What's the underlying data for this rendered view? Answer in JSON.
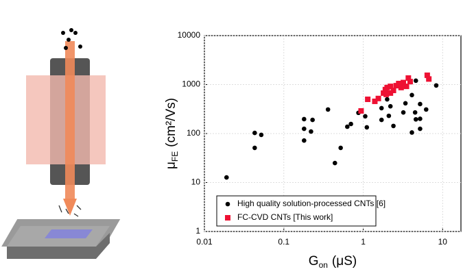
{
  "chart_data": {
    "type": "scatter",
    "x_label": {
      "main": "G",
      "sub": "on",
      "rest": "(μS)"
    },
    "y_label": {
      "main": "μ",
      "sub": "FE",
      "rest": "(cm²/Vs)"
    },
    "log_x": true,
    "log_y": true,
    "grid": true,
    "legend": "lower left",
    "xlim": [
      0.01,
      17
    ],
    "xticks": [
      0.01,
      0.1,
      1,
      10
    ],
    "ylim": [
      1,
      10000
    ],
    "yticks": [
      1,
      10,
      100,
      1000,
      10000
    ],
    "series": [
      {
        "name": "High quality solution-processed CNTs [6]",
        "color": "#000000",
        "marker": "circle",
        "x": [
          0.019,
          0.043,
          0.052,
          0.043,
          0.18,
          0.23,
          0.18,
          0.22,
          0.18,
          0.36,
          0.63,
          0.7,
          0.52,
          0.44,
          0.87,
          1.06,
          1.11,
          1.7,
          1.7,
          2.1,
          2.2,
          2.4,
          3.2,
          3.4,
          2.0,
          4.1,
          4.5,
          5.2,
          4.6,
          5.2,
          4.1,
          6.2,
          4.6,
          8.3,
          5.2
        ],
        "values": [
          12.7,
          103,
          94,
          51,
          197,
          190,
          125,
          110,
          72,
          310,
          138,
          157,
          51,
          25,
          265,
          225,
          134,
          330,
          190,
          230,
          360,
          143,
          270,
          415,
          500,
          610,
          270,
          400,
          195,
          200,
          105,
          310,
          1200,
          960,
          125
        ]
      },
      {
        "name": "FC-CVD CNTs [This work]",
        "color": "#ee1133",
        "marker": "square",
        "x": [
          0.94,
          1.14,
          1.4,
          1.55,
          1.8,
          1.9,
          2.0,
          2.2,
          2.4,
          2.6,
          2.8,
          3.0,
          3.2,
          3.5,
          3.9,
          2.2,
          1.95,
          3.7,
          6.4,
          6.7
        ],
        "values": [
          290,
          500,
          455,
          520,
          670,
          790,
          870,
          920,
          760,
          950,
          1050,
          870,
          1100,
          920,
          1150,
          670,
          630,
          1360,
          1550,
          1300
        ]
      }
    ]
  }
}
